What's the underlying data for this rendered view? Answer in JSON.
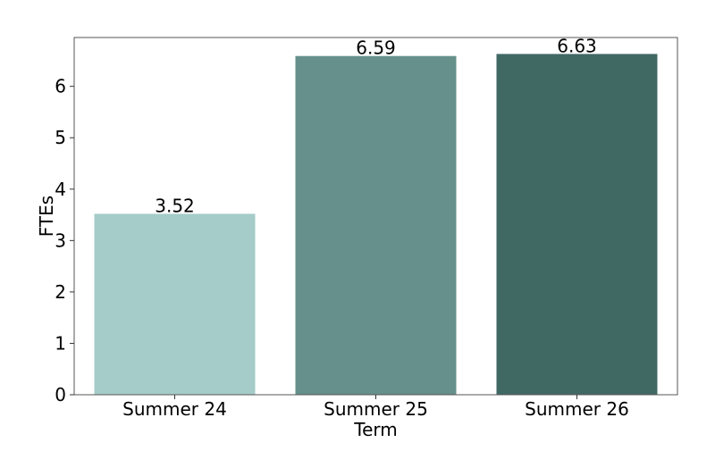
{
  "chart_data": {
    "type": "bar",
    "categories": [
      "Summer 24",
      "Summer 25",
      "Summer 26"
    ],
    "values": [
      3.52,
      6.59,
      6.63
    ],
    "value_labels": [
      "3.52",
      "6.59",
      "6.63"
    ],
    "colors": [
      "#a6ccc9",
      "#65908b",
      "#416964"
    ],
    "title": "",
    "xlabel": "Term",
    "ylabel": "FTEs",
    "ylim": [
      0,
      6.95
    ],
    "yticks": [
      0,
      1,
      2,
      3,
      4,
      5,
      6
    ],
    "grid": false,
    "legend": "none"
  }
}
